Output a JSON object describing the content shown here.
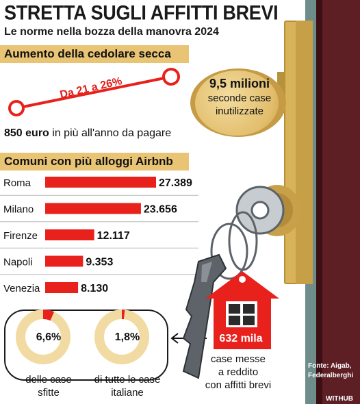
{
  "header": {
    "title": "STRETTA SUGLI AFFITTI BREVI",
    "subtitle": "Le norme nella bozza della manovra 2024"
  },
  "tax_section": {
    "heading": "Aumento della cedolare secca",
    "rate_change": "Da 21 a 26%",
    "from_rate": 21,
    "to_rate": 26,
    "extra_amount": "850 euro",
    "extra_text": "in più all'anno da pagare"
  },
  "second_homes": {
    "value": "9,5 milioni",
    "label_line1": "seconde case",
    "label_line2": "inutilizzate"
  },
  "cities_section": {
    "heading": "Comuni con più alloggi Airbnb"
  },
  "chart_data": {
    "type": "bar",
    "orientation": "horizontal",
    "title": "Comuni con più alloggi Airbnb",
    "categories": [
      "Roma",
      "Milano",
      "Firenze",
      "Napoli",
      "Venezia"
    ],
    "values": [
      27389,
      23656,
      12117,
      9353,
      8130
    ],
    "value_labels": [
      "27.389",
      "23.656",
      "12.117",
      "9.353",
      "8.130"
    ],
    "bar_color": "#e8211c"
  },
  "shares": [
    {
      "value": "6,6%",
      "fraction": 0.066,
      "label_line1": "delle case",
      "label_line2": "sfitte"
    },
    {
      "value": "1,8%",
      "fraction": 0.018,
      "label_line1": "di tutte le case",
      "label_line2": "italiane"
    }
  ],
  "short_rentals": {
    "value": "632 mila",
    "label_line1": "case messe",
    "label_line2": "a reddito",
    "label_line3": "con affitti brevi"
  },
  "footer": {
    "source_line1": "Fonte: Aigab,",
    "source_line2": "Federalberghi",
    "brand": "WITHUB"
  },
  "colors": {
    "accent_red": "#e8211c",
    "band_gold": "#e8c474",
    "donut_track": "#f1dba2",
    "door": "#5e1f24"
  }
}
